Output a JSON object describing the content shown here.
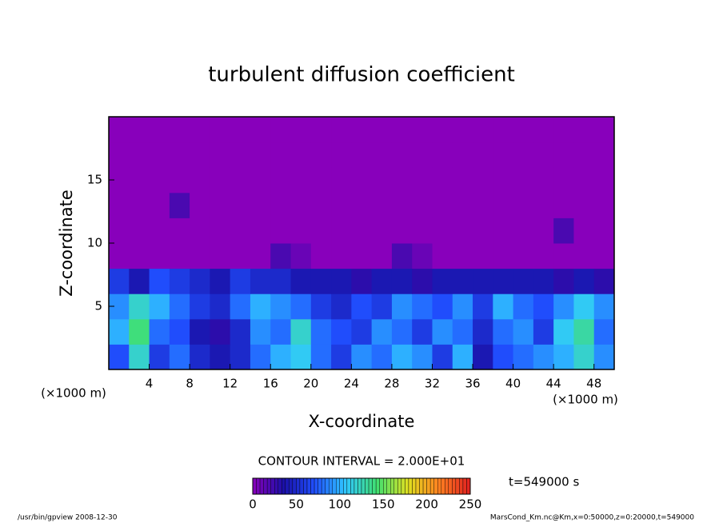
{
  "chart_data": {
    "type": "heatmap",
    "title": "turbulent diffusion coefficient",
    "xlabel": "X-coordinate",
    "ylabel": "Z-coordinate",
    "xunit": "(×1000 m)",
    "yunit": "(×1000 m)",
    "contour_note": "CONTOUR INTERVAL = 2.000E+01",
    "time_note": "t=549000 s",
    "footer_left": "/usr/bin/gpview  2008-12-30",
    "footer_right": "MarsCond_Km.nc@Km,x=0:50000,z=0:20000,t=549000",
    "xlim": [
      0,
      50
    ],
    "ylim": [
      0,
      20
    ],
    "xticks": [
      4,
      8,
      12,
      16,
      20,
      24,
      28,
      32,
      36,
      40,
      44,
      48
    ],
    "yticks": [
      5,
      10,
      15
    ],
    "x": [
      1,
      3,
      5,
      7,
      9,
      11,
      13,
      15,
      17,
      19,
      21,
      23,
      25,
      27,
      29,
      31,
      33,
      35,
      37,
      39,
      41,
      43,
      45,
      47,
      49
    ],
    "y": [
      1,
      3,
      5,
      7,
      9,
      11,
      13,
      15,
      17,
      19
    ],
    "z": [
      [
        70,
        120,
        60,
        80,
        50,
        40,
        50,
        80,
        100,
        110,
        80,
        60,
        90,
        80,
        100,
        90,
        60,
        100,
        40,
        70,
        80,
        90,
        100,
        120,
        90
      ],
      [
        100,
        140,
        80,
        70,
        40,
        30,
        50,
        90,
        80,
        120,
        80,
        70,
        60,
        90,
        80,
        60,
        90,
        80,
        50,
        80,
        90,
        60,
        110,
        130,
        80
      ],
      [
        90,
        120,
        100,
        80,
        60,
        50,
        80,
        100,
        90,
        80,
        60,
        50,
        70,
        60,
        90,
        80,
        70,
        90,
        60,
        100,
        80,
        70,
        90,
        110,
        90
      ],
      [
        60,
        40,
        70,
        60,
        50,
        40,
        60,
        50,
        50,
        40,
        40,
        40,
        30,
        40,
        40,
        30,
        40,
        40,
        40,
        40,
        40,
        40,
        30,
        40,
        30
      ],
      [
        0,
        0,
        0,
        0,
        0,
        0,
        0,
        0,
        20,
        10,
        0,
        0,
        0,
        0,
        20,
        10,
        0,
        0,
        0,
        0,
        0,
        0,
        0,
        0,
        0
      ],
      [
        0,
        0,
        0,
        0,
        0,
        0,
        0,
        0,
        0,
        0,
        0,
        0,
        0,
        0,
        0,
        0,
        0,
        0,
        0,
        0,
        0,
        0,
        20,
        0,
        0
      ],
      [
        0,
        0,
        0,
        20,
        0,
        0,
        0,
        0,
        0,
        0,
        0,
        0,
        0,
        0,
        0,
        0,
        0,
        0,
        0,
        0,
        0,
        0,
        0,
        0,
        0
      ],
      [
        0,
        0,
        0,
        0,
        0,
        0,
        0,
        0,
        0,
        0,
        0,
        0,
        0,
        0,
        0,
        0,
        0,
        0,
        0,
        0,
        0,
        0,
        0,
        0,
        0
      ],
      [
        0,
        0,
        0,
        0,
        0,
        0,
        0,
        0,
        0,
        0,
        0,
        0,
        0,
        0,
        0,
        0,
        0,
        0,
        0,
        0,
        0,
        0,
        0,
        0,
        0
      ],
      [
        0,
        0,
        0,
        0,
        0,
        0,
        0,
        0,
        0,
        0,
        0,
        0,
        0,
        0,
        0,
        0,
        0,
        0,
        0,
        0,
        0,
        0,
        0,
        0,
        0
      ]
    ],
    "clim": [
      0,
      250
    ],
    "cticks": [
      0,
      50,
      100,
      150,
      200,
      250
    ],
    "colors": [
      "#8800bb",
      "#1a10a8",
      "#2050ff",
      "#30c8ff",
      "#40e070",
      "#e0e020",
      "#ff8020",
      "#e02020"
    ]
  }
}
